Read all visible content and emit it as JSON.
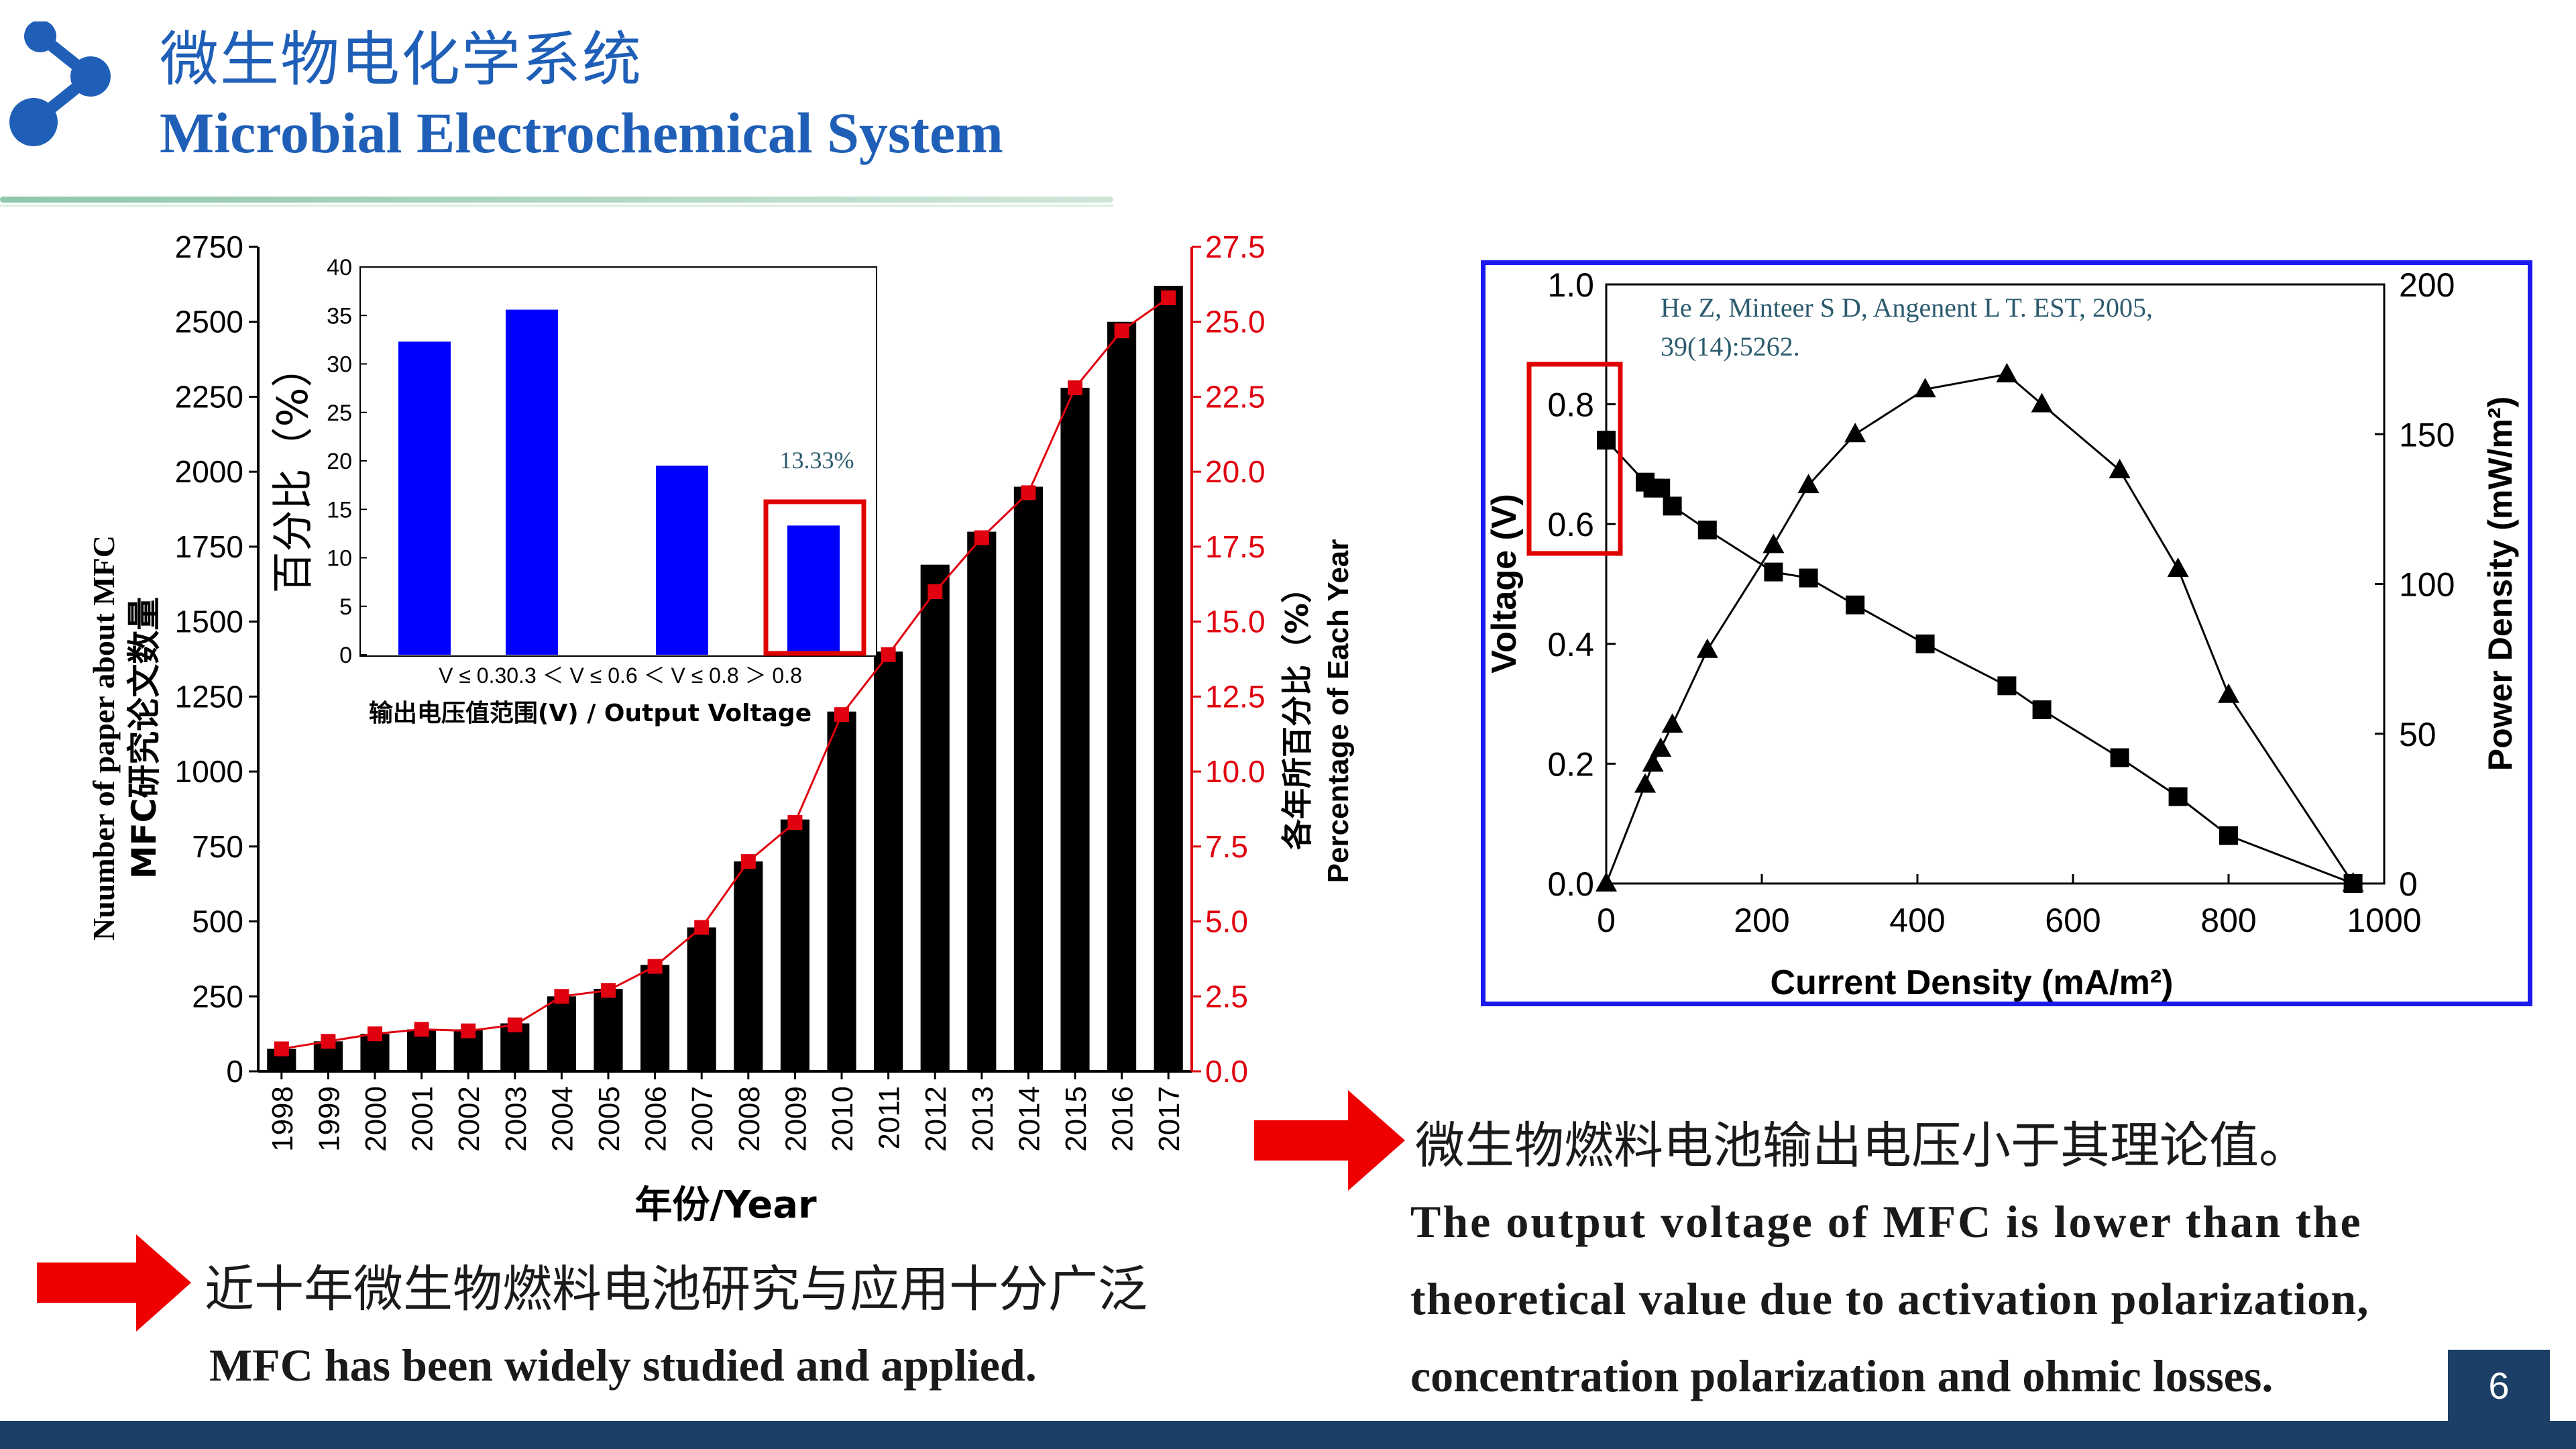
{
  "header": {
    "title_cn": "微生物电化学系统",
    "title_en": "Microbial Electrochemical System"
  },
  "page_number": "6",
  "colors": {
    "accent_blue": "#1f5fb7",
    "bar_black": "#000000",
    "line_red": "#e0000f",
    "inset_bar_blue": "#0000ff",
    "frame_blue": "#1a1aee",
    "footer_navy": "#1b3f66"
  },
  "left_chart": {
    "ylabel_en": "Nuumber of paper about MFC",
    "ylabel_cn": "MFC研究论文数量",
    "y2label_cn": "各年所百分比（%）",
    "y2label_en": "Percentage of Each Year",
    "xlabel": "年份/Year",
    "y_ticks": [
      "0",
      "250",
      "500",
      "750",
      "1000",
      "1250",
      "1500",
      "1750",
      "2000",
      "2250",
      "2500",
      "2750"
    ],
    "y2_ticks": [
      "0.0",
      "2.5",
      "5.0",
      "7.5",
      "10.0",
      "12.5",
      "15.0",
      "17.5",
      "20.0",
      "22.5",
      "25.0",
      "27.5"
    ]
  },
  "inset_chart": {
    "ylabel": "百分比（%）",
    "xlabel": "输出电压值范围(V) / Output Voltage",
    "category_line": "V ≤ 0.30.3 ＜ V ≤ 0.6 ＜ V ≤ 0.8 ＞ 0.8",
    "y_ticks": [
      "0",
      "5",
      "10",
      "15",
      "20",
      "25",
      "30",
      "35",
      "40"
    ],
    "highlight_label": "13.33%"
  },
  "right_chart": {
    "citation_line1": "He Z, Minteer S D, Angenent L T. EST, 2005,",
    "citation_line2": "39(14):5262.",
    "ylabel": "Voltage (V)",
    "y2label": "Power Density (mW/m²)",
    "xlabel": "Current Density (mA/m²)",
    "x_ticks": [
      "0",
      "200",
      "400",
      "600",
      "800",
      "1000"
    ],
    "y_ticks": [
      "0.0",
      "0.2",
      "0.4",
      "0.6",
      "0.8",
      "1.0"
    ],
    "y2_ticks": [
      "0",
      "50",
      "100",
      "150",
      "200"
    ]
  },
  "notes": {
    "left_cn": "近十年微生物燃料电池研究与应用十分广泛",
    "left_en": "MFC has been widely studied and applied.",
    "right_cn": "微生物燃料电池输出电压小于其理论值。",
    "right_en_1": "The output voltage of MFC is lower than the",
    "right_en_2": "theoretical value due to activation polarization,",
    "right_en_3": "concentration polarization and ohmic losses."
  },
  "chart_data": [
    {
      "type": "bar",
      "x": [
        "1998",
        "1999",
        "2000",
        "2001",
        "2002",
        "2003",
        "2004",
        "2005",
        "2006",
        "2007",
        "2008",
        "2009",
        "2010",
        "2011",
        "2012",
        "2013",
        "2014",
        "2015",
        "2016",
        "2017"
      ],
      "series": [
        {
          "values": [
            75,
            100,
            125,
            140,
            140,
            160,
            250,
            275,
            355,
            480,
            700,
            840,
            1200,
            1400,
            1690,
            1800,
            1950,
            2280,
            2500,
            2620
          ]
        },
        {
          "values": [
            0.75,
            1.0,
            1.25,
            1.4,
            1.35,
            1.55,
            2.5,
            2.7,
            3.5,
            4.8,
            7.0,
            8.3,
            11.9,
            13.9,
            16.0,
            17.8,
            19.3,
            22.8,
            24.7,
            25.8
          ]
        }
      ],
      "ylim": [
        0,
        2750
      ],
      "y2lim": [
        0,
        27.5
      ]
    },
    {
      "type": "bar",
      "categories": [
        "V ≤ 0.3",
        "0.3 ＜ V ≤ 0.6",
        "0.6 ＜ V ≤ 0.8",
        "＞ 0.8"
      ],
      "values": [
        32.3,
        35.6,
        19.5,
        13.33
      ],
      "ylim": [
        0,
        40
      ]
    },
    {
      "type": "line",
      "series": [
        {
          "x": [
            0,
            50,
            60,
            70,
            85,
            130,
            215,
            260,
            320,
            410,
            515,
            560,
            660,
            735,
            800,
            960
          ],
          "y": [
            0.74,
            0.67,
            0.66,
            0.66,
            0.63,
            0.59,
            0.52,
            0.51,
            0.465,
            0.4,
            0.33,
            0.29,
            0.21,
            0.145,
            0.08,
            0.0
          ]
        },
        {
          "x": [
            0,
            50,
            60,
            70,
            85,
            130,
            215,
            260,
            320,
            410,
            515,
            560,
            660,
            735,
            800,
            960
          ],
          "y": [
            0,
            33,
            40,
            45,
            53,
            78,
            113,
            133,
            150,
            165,
            170,
            160,
            138,
            105,
            63,
            0
          ]
        }
      ],
      "xlim": [
        0,
        1000
      ],
      "ylim": [
        0,
        1.0
      ],
      "y2lim": [
        0,
        200
      ]
    }
  ]
}
